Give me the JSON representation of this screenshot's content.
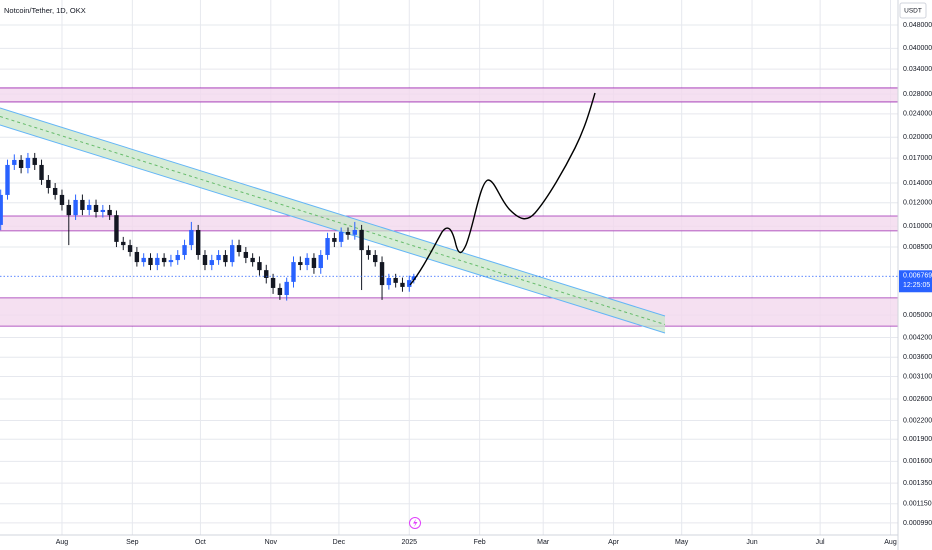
{
  "chart_data": {
    "type": "candlestick",
    "title": "Notcoin/Tether, 1D, OKX",
    "quote_unit": "USDT",
    "log_scale": true,
    "grid": true,
    "up_color": "#2962ff",
    "down_color": "#131722",
    "last_price": 0.006769,
    "last_price_label": "0.006769",
    "countdown": "12:25:05",
    "xlim": [
      -27.3,
      368.3
    ],
    "xticks": [
      {
        "value": 0,
        "label": "Aug"
      },
      {
        "value": 31,
        "label": "Sep"
      },
      {
        "value": 61,
        "label": "Oct"
      },
      {
        "value": 92,
        "label": "Nov"
      },
      {
        "value": 122,
        "label": "Dec"
      },
      {
        "value": 153,
        "label": "2025"
      },
      {
        "value": 184,
        "label": "Feb"
      },
      {
        "value": 212,
        "label": "Mar"
      },
      {
        "value": 243,
        "label": "Apr"
      },
      {
        "value": 273,
        "label": "May"
      },
      {
        "value": 304,
        "label": "Jun"
      },
      {
        "value": 334,
        "label": "Jul"
      },
      {
        "value": 365,
        "label": "Aug"
      }
    ],
    "ylim": [
      0.000901,
      0.0583
    ],
    "yticks": [
      {
        "value": 0.048,
        "label": "0.048000"
      },
      {
        "value": 0.04,
        "label": "0.040000"
      },
      {
        "value": 0.034,
        "label": "0.034000"
      },
      {
        "value": 0.028,
        "label": "0.028000"
      },
      {
        "value": 0.024,
        "label": "0.024000"
      },
      {
        "value": 0.02,
        "label": "0.020000"
      },
      {
        "value": 0.017,
        "label": "0.017000"
      },
      {
        "value": 0.014,
        "label": "0.014000"
      },
      {
        "value": 0.012,
        "label": "0.012000"
      },
      {
        "value": 0.01,
        "label": "0.010000"
      },
      {
        "value": 0.0085,
        "label": "0.008500"
      },
      {
        "value": 0.005,
        "label": "0.005000"
      },
      {
        "value": 0.0042,
        "label": "0.004200"
      },
      {
        "value": 0.0036,
        "label": "0.003600"
      },
      {
        "value": 0.0031,
        "label": "0.003100"
      },
      {
        "value": 0.0026,
        "label": "0.002600"
      },
      {
        "value": 0.0022,
        "label": "0.002200"
      },
      {
        "value": 0.0019,
        "label": "0.001900"
      },
      {
        "value": 0.0016,
        "label": "0.001600"
      },
      {
        "value": 0.00135,
        "label": "0.001350"
      },
      {
        "value": 0.00115,
        "label": "0.001150"
      },
      {
        "value": 0.00099,
        "label": "0.000990"
      }
    ],
    "zones": [
      {
        "ymin": 0.02634,
        "ymax": 0.02938
      },
      {
        "ymin": 0.00964,
        "ymax": 0.01083
      },
      {
        "ymin": 0.00459,
        "ymax": 0.00572
      }
    ],
    "x": [
      -27,
      -24,
      -21,
      -18,
      -15,
      -12,
      -9,
      -6,
      -3,
      0,
      3,
      6,
      9,
      12,
      15,
      18,
      21,
      24,
      27,
      30,
      33,
      36,
      39,
      42,
      45,
      48,
      51,
      54,
      57,
      60,
      63,
      66,
      69,
      72,
      75,
      78,
      81,
      84,
      87,
      90,
      93,
      96,
      99,
      102,
      105,
      108,
      111,
      114,
      117,
      120,
      123,
      126,
      129,
      132,
      135,
      138,
      141,
      144,
      147,
      150,
      153,
      155
    ],
    "open": [
      0.0101,
      0.01276,
      0.01612,
      0.01676,
      0.01574,
      0.01703,
      0.01612,
      0.01434,
      0.01347,
      0.01276,
      0.0118,
      0.0109,
      0.01227,
      0.01135,
      0.0118,
      0.01117,
      0.01135,
      0.0109,
      0.00885,
      0.00863,
      0.00818,
      0.00756,
      0.00781,
      0.00739,
      0.00781,
      0.00756,
      0.00768,
      0.00799,
      0.00863,
      0.00971,
      0.00799,
      0.00739,
      0.00768,
      0.00799,
      0.00756,
      0.00863,
      0.00818,
      0.00781,
      0.00756,
      0.0071,
      0.00668,
      0.00618,
      0.00585,
      0.00648,
      0.00756,
      0.00739,
      0.00781,
      0.00722,
      0.00799,
      0.00912,
      0.00885,
      0.00956,
      0.00935,
      0.00971,
      0.0083,
      0.00799,
      0.00756,
      0.00632,
      0.00668,
      0.00643,
      0.00623,
      0.00657
    ],
    "high": [
      0.0133,
      0.0168,
      0.0175,
      0.0174,
      0.0177,
      0.0177,
      0.0168,
      0.0149,
      0.014,
      0.0133,
      0.0123,
      0.0128,
      0.0128,
      0.0123,
      0.0123,
      0.0118,
      0.0118,
      0.0113,
      0.0092,
      0.009,
      0.0085,
      0.0081,
      0.0081,
      0.0081,
      0.0081,
      0.008,
      0.0083,
      0.009,
      0.01034,
      0.0101,
      0.0083,
      0.008,
      0.0083,
      0.0083,
      0.009,
      0.009,
      0.0085,
      0.0081,
      0.0079,
      0.0074,
      0.0069,
      0.0064,
      0.0067,
      0.0079,
      0.0079,
      0.0081,
      0.0081,
      0.0083,
      0.0095,
      0.0095,
      0.0099,
      0.0099,
      0.01034,
      0.0101,
      0.0086,
      0.0083,
      0.0079,
      0.0069,
      0.0069,
      0.0067,
      0.0068,
      0.0069
    ],
    "low": [
      0.0097,
      0.0123,
      0.0155,
      0.0151,
      0.0151,
      0.0155,
      0.0138,
      0.0129,
      0.0123,
      0.0113,
      0.00863,
      0.0105,
      0.0109,
      0.0109,
      0.0107,
      0.0107,
      0.0105,
      0.0085,
      0.0083,
      0.0079,
      0.0073,
      0.0073,
      0.0071,
      0.0071,
      0.0073,
      0.0073,
      0.0074,
      0.0077,
      0.0083,
      0.0077,
      0.0071,
      0.0071,
      0.0074,
      0.0073,
      0.0073,
      0.0079,
      0.0075,
      0.0073,
      0.0068,
      0.0064,
      0.0059,
      0.00563,
      0.0056,
      0.0062,
      0.0071,
      0.0071,
      0.0069,
      0.0069,
      0.0077,
      0.0085,
      0.0085,
      0.009,
      0.009,
      0.00608,
      0.0077,
      0.0073,
      0.00563,
      0.0061,
      0.0062,
      0.006,
      0.006,
      0.0064
    ],
    "close": [
      0.01276,
      0.01612,
      0.01676,
      0.01574,
      0.01703,
      0.01612,
      0.01434,
      0.01347,
      0.01276,
      0.0118,
      0.0109,
      0.01227,
      0.01135,
      0.0118,
      0.01117,
      0.01135,
      0.0109,
      0.00885,
      0.00863,
      0.00818,
      0.00756,
      0.00781,
      0.00739,
      0.00781,
      0.00756,
      0.00768,
      0.00799,
      0.00863,
      0.00971,
      0.00799,
      0.00739,
      0.00768,
      0.00799,
      0.00756,
      0.00863,
      0.00818,
      0.00781,
      0.00756,
      0.0071,
      0.00668,
      0.00618,
      0.00585,
      0.00648,
      0.00756,
      0.00739,
      0.00781,
      0.00722,
      0.00799,
      0.00912,
      0.00885,
      0.00956,
      0.00935,
      0.00971,
      0.0083,
      0.00799,
      0.00756,
      0.00632,
      0.00668,
      0.00643,
      0.00623,
      0.00657,
      0.006769
    ]
  }
}
